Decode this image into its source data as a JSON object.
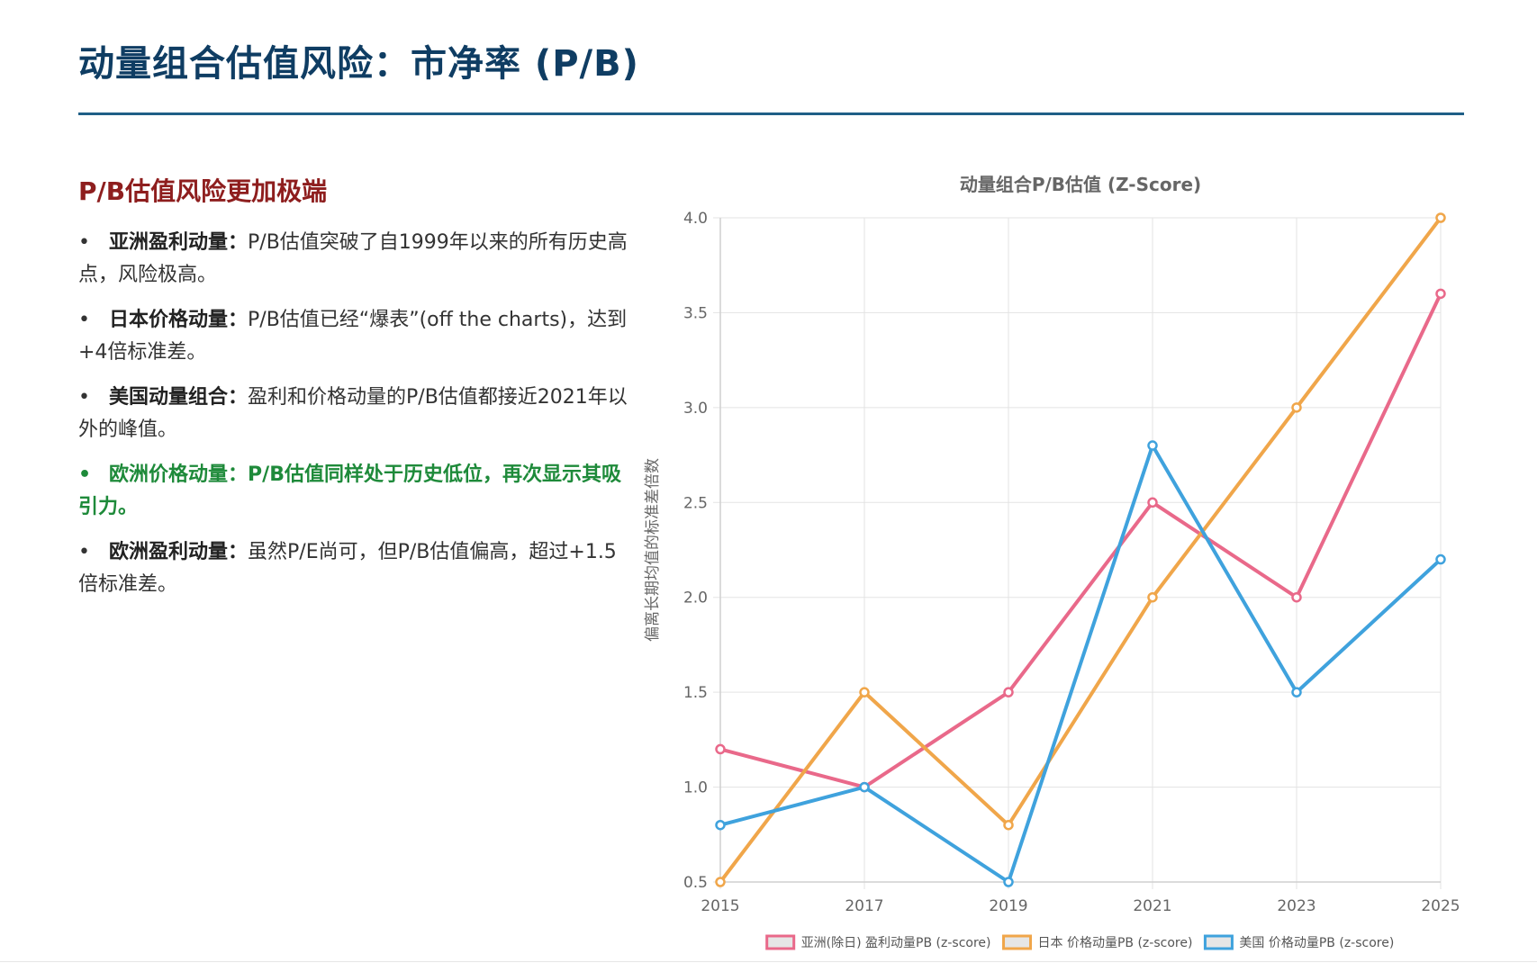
{
  "header": {
    "title": "动量组合估值风险：市净率 (P/B)"
  },
  "left_panel": {
    "heading": "P/B估值风险更加极端",
    "bullets": [
      {
        "lead": "亚洲盈利动量",
        "sep": "：",
        "text": "P/B估值突破了自1999年以来的所有历史高点，风险极高。",
        "highlight": false
      },
      {
        "lead": "日本价格动量",
        "sep": "：",
        "text": "P/B估值已经“爆表”(off the charts)，达到+4倍标准差。",
        "highlight": false
      },
      {
        "lead": "美国动量组合",
        "sep": "：",
        "text": "盈利和价格动量的P/B估值都接近2021年以外的峰值。",
        "highlight": false
      },
      {
        "lead": "欧洲价格动量",
        "sep": "：",
        "text": "P/B估值同样处于历史低位，再次显示其吸引力。",
        "highlight": true
      },
      {
        "lead": "欧洲盈利动量",
        "sep": "：",
        "text": "虽然P/E尚可，但P/B估值偏高，超过+1.5倍标准差。",
        "highlight": false
      }
    ]
  },
  "chart_data": {
    "type": "line",
    "title": "动量组合P/B估值 (Z-Score)",
    "xlabel": "",
    "ylabel": "偏离长期均值的标准差倍数",
    "x": [
      "2015",
      "2017",
      "2019",
      "2021",
      "2023",
      "2025"
    ],
    "ylim": [
      0.5,
      4.0
    ],
    "yticks": [
      0.5,
      1.0,
      1.5,
      2.0,
      2.5,
      3.0,
      3.5,
      4.0
    ],
    "grid": true,
    "legend_position": "bottom",
    "series": [
      {
        "name": "亚洲(除日) 盈利动量PB (z-score)",
        "color": "#e9698a",
        "values": [
          1.2,
          1.0,
          1.5,
          2.5,
          2.0,
          3.6
        ]
      },
      {
        "name": "日本 价格动量PB (z-score)",
        "color": "#f0a64a",
        "values": [
          0.5,
          1.5,
          0.8,
          2.0,
          3.0,
          4.0
        ]
      },
      {
        "name": "美国 价格动量PB (z-score)",
        "color": "#3fa2dd",
        "values": [
          0.8,
          1.0,
          0.5,
          2.8,
          1.5,
          2.2
        ]
      }
    ]
  }
}
